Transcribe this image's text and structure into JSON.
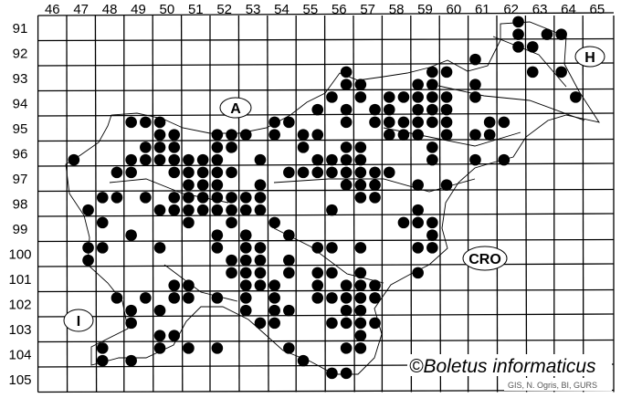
{
  "map": {
    "column_labels": [
      "46",
      "47",
      "48",
      "49",
      "50",
      "51",
      "52",
      "53",
      "54",
      "55",
      "56",
      "57",
      "58",
      "59",
      "60",
      "61",
      "62",
      "63",
      "64",
      "65"
    ],
    "row_labels": [
      "91",
      "92",
      "93",
      "94",
      "95",
      "96",
      "97",
      "98",
      "99",
      "100",
      "101",
      "102",
      "103",
      "104",
      "105"
    ],
    "country_labels": {
      "austria": "A",
      "hungary": "H",
      "croatia": "CRO",
      "italy": "I"
    },
    "watermark": "©Boletus informaticus",
    "credits": "GIS, N. Ogris, BI, GURS",
    "dot_color": "#000000",
    "records_by_row": [
      {
        "row": 91.25,
        "cols": [
          62.75
        ]
      },
      {
        "row": 91.75,
        "cols": [
          62.75,
          63.75,
          64.25
        ]
      },
      {
        "row": 92.25,
        "cols": [
          62.75,
          63.25
        ]
      },
      {
        "row": 92.75,
        "cols": [
          61.25
        ]
      },
      {
        "row": 93.25,
        "cols": [
          56.75,
          59.75,
          60.25,
          63.25,
          64.25
        ]
      },
      {
        "row": 93.75,
        "cols": [
          56.75,
          57.25,
          59.25,
          59.75,
          61.25
        ]
      },
      {
        "row": 94.25,
        "cols": [
          56.25,
          57.25,
          58.25,
          58.75,
          59.25,
          59.75,
          60.25,
          61.25,
          64.75
        ]
      },
      {
        "row": 94.75,
        "cols": [
          55.75,
          56.75,
          57.75,
          58.25,
          59.25,
          59.75,
          60.25
        ]
      },
      {
        "row": 95.25,
        "cols": [
          49.25,
          49.75,
          50.25,
          54.25,
          54.75,
          56.75,
          57.75,
          58.25,
          58.75,
          59.25,
          59.75,
          60.25,
          61.75,
          62.25
        ]
      },
      {
        "row": 95.75,
        "cols": [
          50.25,
          50.75,
          52.25,
          52.75,
          53.25,
          54.25,
          55.25,
          55.75,
          58.25,
          58.75,
          59.25,
          60.25,
          61.25,
          61.75
        ]
      },
      {
        "row": 96.25,
        "cols": [
          49.75,
          50.25,
          50.75,
          52.25,
          52.75,
          55.25,
          56.75,
          57.25,
          59.75
        ]
      },
      {
        "row": 96.75,
        "cols": [
          47.25,
          49.25,
          49.75,
          50.25,
          50.75,
          51.25,
          51.75,
          52.25,
          53.75,
          55.75,
          56.25,
          56.75,
          57.25,
          59.75,
          61.25,
          62.25
        ]
      },
      {
        "row": 97.25,
        "cols": [
          48.75,
          49.25,
          50.75,
          51.25,
          51.75,
          52.25,
          52.75,
          54.75,
          55.25,
          55.75,
          56.25,
          56.75,
          57.25,
          57.75,
          58.25
        ]
      },
      {
        "row": 97.75,
        "cols": [
          51.25,
          51.75,
          52.25,
          53.75,
          56.75,
          57.25,
          57.75,
          59.25,
          60.25
        ]
      },
      {
        "row": 98.25,
        "cols": [
          48.25,
          48.75,
          49.75,
          50.75,
          51.25,
          51.75,
          52.25,
          52.75,
          53.25,
          53.75,
          57.25,
          57.75
        ]
      },
      {
        "row": 98.75,
        "cols": [
          47.75,
          50.25,
          50.75,
          51.25,
          51.75,
          52.25,
          52.75,
          53.25,
          53.75,
          56.25,
          59.25
        ]
      },
      {
        "row": 99.25,
        "cols": [
          48.25,
          51.25,
          52.75,
          54.25,
          58.75,
          59.25,
          59.75
        ]
      },
      {
        "row": 99.75,
        "cols": [
          49.25,
          52.25,
          53.25,
          54.75,
          59.75
        ]
      },
      {
        "row": 100.25,
        "cols": [
          47.75,
          48.25,
          50.25,
          52.25,
          53.25,
          53.75,
          55.75,
          56.25,
          57.25,
          59.25,
          59.75
        ]
      },
      {
        "row": 100.75,
        "cols": [
          47.75,
          52.75,
          53.25,
          53.75,
          54.75
        ]
      },
      {
        "row": 101.25,
        "cols": [
          52.75,
          53.25,
          53.75,
          54.75,
          55.75,
          56.25,
          57.25,
          59.25
        ]
      },
      {
        "row": 101.75,
        "cols": [
          50.75,
          51.25,
          53.25,
          53.75,
          54.25,
          55.75,
          56.75,
          57.25,
          57.75
        ]
      },
      {
        "row": 102.25,
        "cols": [
          48.75,
          49.75,
          50.75,
          51.25,
          52.25,
          53.25,
          54.25,
          55.75,
          56.25,
          56.75,
          57.25,
          57.75
        ]
      },
      {
        "row": 102.75,
        "cols": [
          49.25,
          50.25,
          53.25,
          54.25,
          54.75,
          56.75,
          57.25
        ]
      },
      {
        "row": 103.25,
        "cols": [
          49.25,
          53.75,
          54.25,
          56.25,
          56.75,
          57.25,
          57.75
        ]
      },
      {
        "row": 103.75,
        "cols": [
          50.25,
          50.75,
          57.25
        ]
      },
      {
        "row": 104.25,
        "cols": [
          48.25,
          50.25,
          51.25,
          52.25,
          54.75,
          56.75,
          57.25
        ]
      },
      {
        "row": 104.75,
        "cols": [
          48.25,
          49.25,
          55.25
        ]
      },
      {
        "row": 105.25,
        "cols": [
          56.25,
          56.75
        ]
      }
    ]
  }
}
